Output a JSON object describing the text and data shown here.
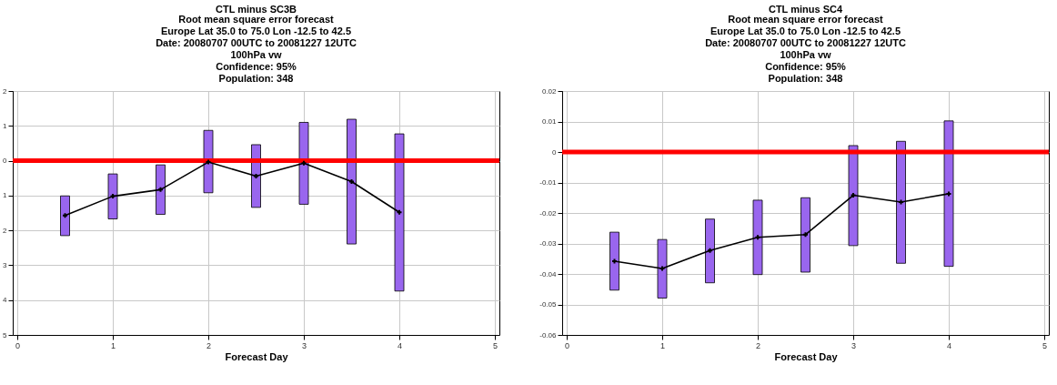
{
  "chart_data": [
    {
      "type": "line",
      "title": "CTL minus SC3B",
      "subtitle": "Root mean square error forecast\nEurope  Lat  35.0 to 75.0 Lon  -12.5 to  42.5\nDate: 20080707 00UTC to 20081227 12UTC\n100hPa vw\nConfidence: 95%\nPopulation: 348",
      "xlabel": "Forecast Day",
      "x": [
        0.5,
        1,
        1.5,
        2,
        2.5,
        3,
        3.5,
        4
      ],
      "series": [
        {
          "type": "bar",
          "color": "#9966ee",
          "base": [
            -2.15,
            -1.67,
            -1.54,
            -0.92,
            -1.34,
            -1.25,
            -2.39,
            -3.74
          ],
          "values": [
            1.14,
            1.29,
            1.42,
            1.79,
            1.8,
            2.35,
            3.58,
            4.51
          ]
        },
        {
          "color": "#000000",
          "values": [
            -1.57,
            -1.02,
            -0.83,
            -0.04,
            -0.44,
            -0.07,
            -0.6,
            -1.48
          ]
        }
      ],
      "xlim": [
        0,
        5
      ],
      "xticks": [
        0,
        1,
        2,
        3,
        4,
        5
      ],
      "ylim": [
        -5,
        2
      ],
      "yticks": [
        2,
        1,
        0,
        {
          "value": -1,
          "label": "1"
        },
        {
          "value": -2,
          "label": "2"
        },
        {
          "value": -3,
          "label": "3"
        },
        {
          "value": -4,
          "label": "4"
        },
        {
          "value": -5,
          "label": "5"
        }
      ],
      "ref_lines": [
        {
          "axis": "y",
          "value": 0,
          "color": "#ff0000"
        }
      ],
      "grid": true,
      "marker": "cross"
    },
    {
      "type": "line",
      "title": "CTL minus SC4",
      "subtitle": "Root mean square error forecast\nEurope  Lat  35.0 to 75.0 Lon  -12.5 to  42.5\nDate: 20080707 00UTC to 20081227 12UTC\n100hPa vw\nConfidence: 95%\nPopulation: 348",
      "xlabel": "Forecast Day",
      "x": [
        0.5,
        1,
        1.5,
        2,
        2.5,
        3,
        3.5,
        4
      ],
      "series": [
        {
          "type": "bar",
          "color": "#9966ee",
          "base": [
            -0.0453,
            -0.0479,
            -0.0429,
            -0.0402,
            -0.0394,
            -0.0307,
            -0.0365,
            -0.0375
          ],
          "values": [
            0.019,
            0.0192,
            0.0209,
            0.0244,
            0.0244,
            0.0328,
            0.04,
            0.0477
          ]
        },
        {
          "color": "#000000",
          "values": [
            -0.0358,
            -0.0382,
            -0.0323,
            -0.028,
            -0.0271,
            -0.0142,
            -0.0164,
            -0.0137
          ]
        }
      ],
      "xlim": [
        0,
        5
      ],
      "xticks": [
        0,
        1,
        2,
        3,
        4,
        5
      ],
      "ylim": [
        -0.06,
        0.02
      ],
      "yticks": [
        0.02,
        0.01,
        0,
        -0.01,
        -0.02,
        -0.03,
        -0.04,
        -0.05,
        -0.06
      ],
      "ref_lines": [
        {
          "axis": "y",
          "value": 0,
          "color": "#ff0000"
        }
      ],
      "grid": true,
      "marker": "cross"
    }
  ]
}
